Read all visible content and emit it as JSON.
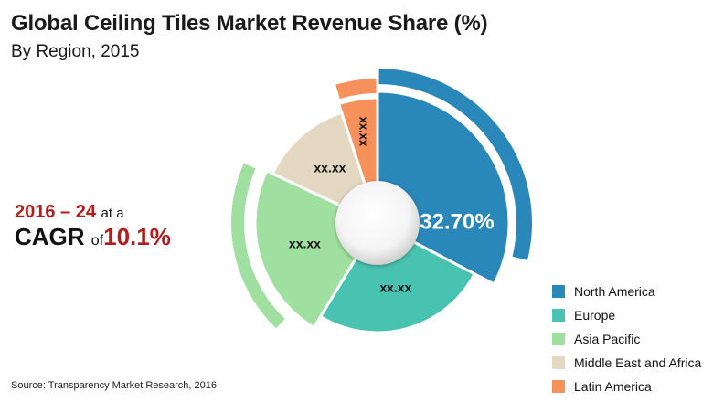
{
  "chart_data": {
    "type": "pie",
    "title": "Global Ceiling Tiles Market Revenue Share (%)",
    "subtitle": "By Region, 2015",
    "series": [
      {
        "name": "North America",
        "value": 32.7,
        "label": "32.70%",
        "color": "#2a87ba"
      },
      {
        "name": "Europe",
        "value": 26.0,
        "label": "xx.xx",
        "color": "#48c2b1"
      },
      {
        "name": "Asia Pacific",
        "value": 23.3,
        "label": "xx.xx",
        "color": "#9fe0a0"
      },
      {
        "name": "Middle East and Africa",
        "value": 13.0,
        "label": "xx.xx",
        "color": "#e5d8c3"
      },
      {
        "name": "Latin America",
        "value": 5.0,
        "label": "xx.xx",
        "color": "#f7915c"
      }
    ],
    "legend_position": "bottom-right"
  },
  "cagr": {
    "period": "2016 – 24",
    "at_a": "at a",
    "cagr_label": "CAGR",
    "of": "of",
    "rate": "10.1%"
  },
  "source": "Source: Transparency Market Research, 2016"
}
